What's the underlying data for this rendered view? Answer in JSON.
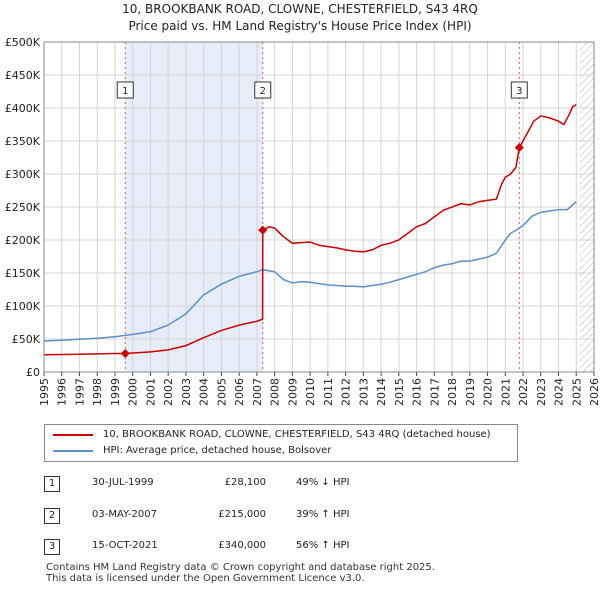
{
  "title_line1": "10, BROOKBANK ROAD, CLOWNE, CHESTERFIELD, S43 4RQ",
  "title_line2": "Price paid vs. HM Land Registry's House Price Index (HPI)",
  "chart_data": {
    "type": "line",
    "title": "Price paid vs. HM Land Registry's House Price Index (HPI)",
    "xlabel": "",
    "ylabel": "",
    "xlim": [
      1995,
      2026
    ],
    "ylim": [
      0,
      500000
    ],
    "x_ticks": [
      "1995",
      "1996",
      "1997",
      "1998",
      "1999",
      "2000",
      "2001",
      "2002",
      "2003",
      "2004",
      "2005",
      "2006",
      "2007",
      "2008",
      "2009",
      "2010",
      "2011",
      "2012",
      "2013",
      "2014",
      "2015",
      "2016",
      "2017",
      "2018",
      "2019",
      "2020",
      "2021",
      "2022",
      "2023",
      "2024",
      "2025",
      "2026"
    ],
    "y_ticks": [
      {
        "value": 0,
        "label": "£0"
      },
      {
        "value": 50000,
        "label": "£50K"
      },
      {
        "value": 100000,
        "label": "£100K"
      },
      {
        "value": 150000,
        "label": "£150K"
      },
      {
        "value": 200000,
        "label": "£200K"
      },
      {
        "value": 250000,
        "label": "£250K"
      },
      {
        "value": 300000,
        "label": "£300K"
      },
      {
        "value": 350000,
        "label": "£350K"
      },
      {
        "value": 400000,
        "label": "£400K"
      },
      {
        "value": 450000,
        "label": "£450K"
      },
      {
        "value": 500000,
        "label": "£500K"
      }
    ],
    "grid": true,
    "ownership_shading": [
      [
        1999.58,
        2007.33
      ]
    ],
    "future_hatch_from": 2025.2,
    "series": [
      {
        "name": "10, BROOKBANK ROAD, CLOWNE, CHESTERFIELD, S43 4RQ (detached house)",
        "color": "#cc0000",
        "x": [
          1995,
          1996,
          1997,
          1998,
          1999,
          1999.58,
          2000,
          2001,
          2002,
          2003,
          2004,
          2005,
          2006,
          2007,
          2007.32,
          2007.33,
          2007.7,
          2008,
          2008.5,
          2009,
          2009.5,
          2010,
          2010.5,
          2011,
          2011.5,
          2012,
          2012.5,
          2013,
          2013.5,
          2014,
          2014.5,
          2015,
          2015.5,
          2016,
          2016.5,
          2017,
          2017.5,
          2018,
          2018.5,
          2019,
          2019.5,
          2020,
          2020.5,
          2020.8,
          2021,
          2021.3,
          2021.6,
          2021.79,
          2022,
          2022.3,
          2022.6,
          2023,
          2023.5,
          2024,
          2024.3,
          2024.6,
          2024.8,
          2025
        ],
        "values": [
          26000,
          26500,
          27000,
          27500,
          28000,
          28100,
          28800,
          30500,
          33500,
          40000,
          52000,
          63000,
          71000,
          77000,
          80000,
          215000,
          220000,
          218000,
          205000,
          195000,
          196000,
          197000,
          192000,
          190000,
          188000,
          185000,
          183000,
          182000,
          185000,
          192000,
          195000,
          200000,
          210000,
          220000,
          225000,
          235000,
          245000,
          250000,
          255000,
          253000,
          258000,
          260000,
          262000,
          285000,
          295000,
          300000,
          310000,
          340000,
          350000,
          365000,
          380000,
          388000,
          385000,
          380000,
          375000,
          390000,
          402000,
          405000
        ]
      },
      {
        "name": "HPI: Average price, detached house, Bolsover",
        "color": "#5b8fc9",
        "x": [
          1995,
          1996,
          1997,
          1998,
          1999,
          1999.58,
          2000,
          2001,
          2002,
          2003,
          2004,
          2005,
          2006,
          2007,
          2007.33,
          2008,
          2008.5,
          2009,
          2009.5,
          2010,
          2010.5,
          2011,
          2011.5,
          2012,
          2012.5,
          2013,
          2013.5,
          2014,
          2014.5,
          2015,
          2015.5,
          2016,
          2016.5,
          2017,
          2017.5,
          2018,
          2018.5,
          2019,
          2019.5,
          2020,
          2020.5,
          2021,
          2021.3,
          2021.79,
          2022,
          2022.5,
          2023,
          2023.5,
          2024,
          2024.5,
          2025
        ],
        "values": [
          47000,
          48000,
          49500,
          51000,
          53500,
          55500,
          57000,
          61000,
          71000,
          88000,
          117000,
          133000,
          145000,
          152000,
          155000,
          152000,
          140000,
          135000,
          137000,
          136000,
          134000,
          132000,
          131000,
          130000,
          130000,
          129000,
          131000,
          133000,
          136000,
          140000,
          144000,
          148000,
          152000,
          158000,
          162000,
          164000,
          168000,
          168000,
          171000,
          174000,
          180000,
          200000,
          210000,
          218000,
          222000,
          236000,
          242000,
          244000,
          246000,
          246000,
          258000
        ]
      }
    ],
    "sales": [
      {
        "label": "1",
        "x": 1999.58,
        "value": 28100
      },
      {
        "label": "2",
        "x": 2007.33,
        "value": 215000
      },
      {
        "label": "3",
        "x": 2021.79,
        "value": 340000
      }
    ]
  },
  "legend": {
    "property_label": "10, BROOKBANK ROAD, CLOWNE, CHESTERFIELD, S43 4RQ (detached house)",
    "hpi_label": "HPI: Average price, detached house, Bolsover"
  },
  "transactions": [
    {
      "num": "1",
      "date": "30-JUL-1999",
      "price": "£28,100",
      "hpi": "49% ↓ HPI"
    },
    {
      "num": "2",
      "date": "03-MAY-2007",
      "price": "£215,000",
      "hpi": "39% ↑ HPI"
    },
    {
      "num": "3",
      "date": "15-OCT-2021",
      "price": "£340,000",
      "hpi": "56% ↑ HPI"
    }
  ],
  "footer_line1": "Contains HM Land Registry data © Crown copyright and database right 2025.",
  "footer_line2": "This data is licensed under the Open Government Licence v3.0."
}
